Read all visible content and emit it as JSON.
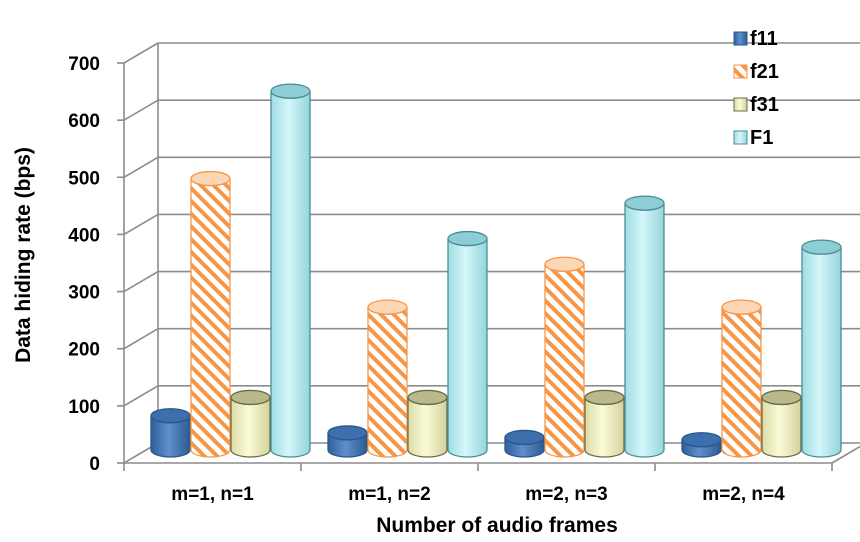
{
  "chart_data": {
    "type": "bar",
    "title": "",
    "xlabel": "Number of audio frames",
    "ylabel": "Data hiding rate (bps)",
    "ylim": [
      0,
      700
    ],
    "yticks": [
      "0",
      "100",
      "200",
      "300",
      "400",
      "500",
      "600",
      "700"
    ],
    "grid": true,
    "legend_position": "top-right",
    "categories": [
      "m=1, n=1",
      "m=1, n=2",
      "m=2, n=3",
      "m=2, n=4"
    ],
    "series": [
      {
        "name": "f11",
        "values": [
          60,
          30,
          22,
          18
        ]
      },
      {
        "name": "f21",
        "values": [
          475,
          250,
          325,
          250
        ]
      },
      {
        "name": "f31",
        "values": [
          92,
          92,
          92,
          92
        ]
      },
      {
        "name": "F1",
        "values": [
          628,
          370,
          432,
          355
        ]
      }
    ],
    "colors": {
      "f11": "#4f81bd",
      "f21": "#f79646",
      "f31": "#f4f4c4",
      "F1": "#bdeff3",
      "grid": "#8c8c8c"
    }
  }
}
